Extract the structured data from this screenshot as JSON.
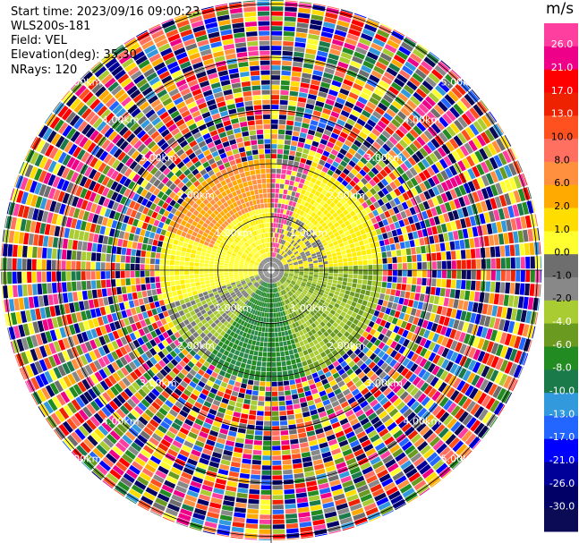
{
  "header": {
    "start_time": "Start time: 2023/09/16 09:00:23",
    "instrument": "WLS200s-181",
    "field": "Field: VEL",
    "elevation": "Elevation(deg): 35.30",
    "nrays": "NRays: 120"
  },
  "rings": [
    {
      "label_ne": "1.00km",
      "label_sw": "1.00km",
      "label_nw": "1.00km",
      "label_se": "1.00km"
    },
    {
      "label": "2.00km"
    },
    {
      "label": "3.00km"
    },
    {
      "label": "4.00km"
    },
    {
      "label": "5.00km"
    }
  ],
  "ring_labels": [
    "1.00km",
    "2.00km",
    "3.00km",
    "4.00km",
    "5.00km"
  ],
  "colorbar": {
    "unit": "m/s",
    "ticks": [
      "26.0",
      "21.0",
      "17.0",
      "13.0",
      "10.0",
      "8.0",
      "6.0",
      "2.0",
      "1.0",
      "0.0",
      "-1.0",
      "-2.0",
      "-4.0",
      "-6.0",
      "-8.0",
      "-10.0",
      "-13.0",
      "-17.0",
      "-21.0",
      "-26.0",
      "-30.0"
    ],
    "colors": [
      "#ff3fa0",
      "#ee0088",
      "#ff0000",
      "#ee2200",
      "#ff5020",
      "#ff7060",
      "#ff9040",
      "#ffaa00",
      "#ffdd00",
      "#ffff30",
      "#6e6e6e",
      "#888888",
      "#aacc33",
      "#6a9a20",
      "#228b22",
      "#1a7a4a",
      "#3399dd",
      "#2266ff",
      "#0000ff",
      "#000099",
      "#000066",
      "#0a0a55"
    ]
  }
}
